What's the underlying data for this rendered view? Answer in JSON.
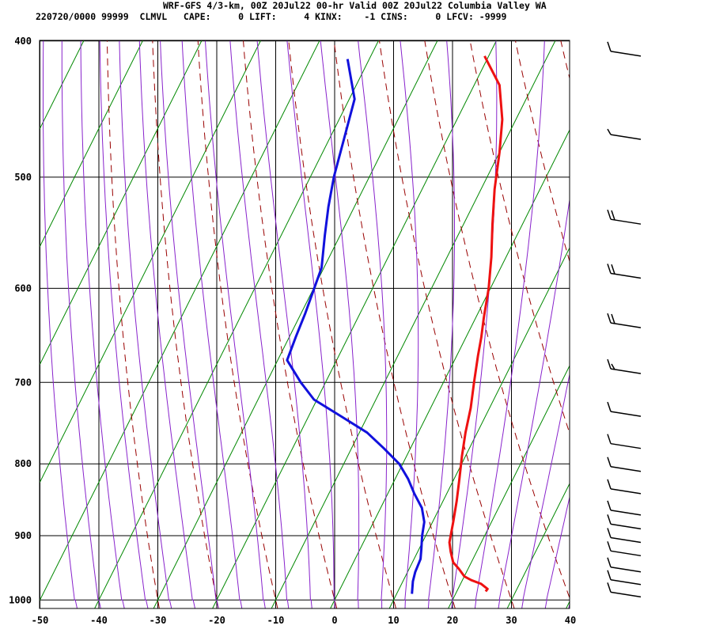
{
  "header": {
    "line1": "WRF-GFS 4/3-km, 00Z 20Jul22 00-hr Valid 00Z 20Jul22 Columbia Valley WA",
    "line2": "220720/0000 99999  CLMVL   CAPE:     0 LIFT:     4 KINX:    -1 CINS:     0 LFCV: -9999"
  },
  "chart_data": {
    "type": "line",
    "title": "WRF-GFS 4/3-km, 00Z 20Jul22 00-hr Valid 00Z 20Jul22 Columbia Valley WA",
    "subtitle": "220720/0000 99999  CLMVL   CAPE:     0 LIFT:     4 KINX:    -1 CINS:     0 LFCV: -9999",
    "x_ticks": [
      -50,
      -40,
      -30,
      -20,
      -10,
      0,
      10,
      20,
      30,
      40
    ],
    "p_ticks": [
      400,
      500,
      600,
      700,
      800,
      900,
      1000
    ],
    "xlim": [
      -50,
      40
    ],
    "plim": [
      400,
      1050
    ],
    "y_scale": "log",
    "grid": true,
    "colors": {
      "temperature": "#ee1111",
      "dewpoint": "#1111dd",
      "isotherm": "#008800",
      "dry_adiabat": "#990000",
      "moist_adiabat": "#8822cc"
    },
    "series": [
      {
        "key": "temperature",
        "p": [
          986,
          982,
          974,
          968,
          962,
          950,
          940,
          924,
          910,
          880,
          850,
          820,
          790,
          760,
          730,
          700,
          670,
          650,
          630,
          600,
          570,
          540,
          510,
          480,
          455,
          430,
          410
        ],
        "t": [
          24.9,
          25.0,
          23.5,
          21.5,
          20.0,
          18.4,
          16.9,
          15.6,
          14.6,
          13.5,
          12.3,
          10.9,
          9.4,
          8.0,
          6.8,
          5.2,
          3.6,
          2.6,
          1.4,
          -0.3,
          -2.5,
          -5.1,
          -7.7,
          -10.0,
          -12.3,
          -15.7,
          -20.7
        ]
      },
      {
        "key": "dewpoint",
        "p": [
          990,
          970,
          955,
          935,
          920,
          900,
          880,
          860,
          840,
          820,
          800,
          780,
          760,
          740,
          720,
          700,
          675,
          650,
          625,
          600,
          580,
          550,
          525,
          500,
          470,
          440,
          412
        ],
        "t": [
          12.6,
          11.7,
          11.3,
          11.1,
          10.4,
          9.4,
          8.6,
          7.0,
          4.5,
          2.2,
          -0.6,
          -4.5,
          -8.7,
          -14.5,
          -20.5,
          -24.2,
          -28.4,
          -28.9,
          -29.3,
          -29.9,
          -30.4,
          -32.6,
          -34.4,
          -36.0,
          -37.5,
          -39.1,
          -43.7
        ]
      }
    ],
    "wind_barbs": [
      {
        "p": 410,
        "speed_kt": 10
      },
      {
        "p": 470,
        "speed_kt": 5
      },
      {
        "p": 540,
        "speed_kt": 20
      },
      {
        "p": 590,
        "speed_kt": 20
      },
      {
        "p": 640,
        "speed_kt": 20
      },
      {
        "p": 690,
        "speed_kt": 15
      },
      {
        "p": 740,
        "speed_kt": 10
      },
      {
        "p": 780,
        "speed_kt": 10
      },
      {
        "p": 810,
        "speed_kt": 10
      },
      {
        "p": 840,
        "speed_kt": 10
      },
      {
        "p": 870,
        "speed_kt": 10
      },
      {
        "p": 890,
        "speed_kt": 10
      },
      {
        "p": 910,
        "speed_kt": 10
      },
      {
        "p": 930,
        "speed_kt": 10
      },
      {
        "p": 955,
        "speed_kt": 10
      },
      {
        "p": 975,
        "speed_kt": 10
      },
      {
        "p": 995,
        "speed_kt": 10
      }
    ]
  }
}
